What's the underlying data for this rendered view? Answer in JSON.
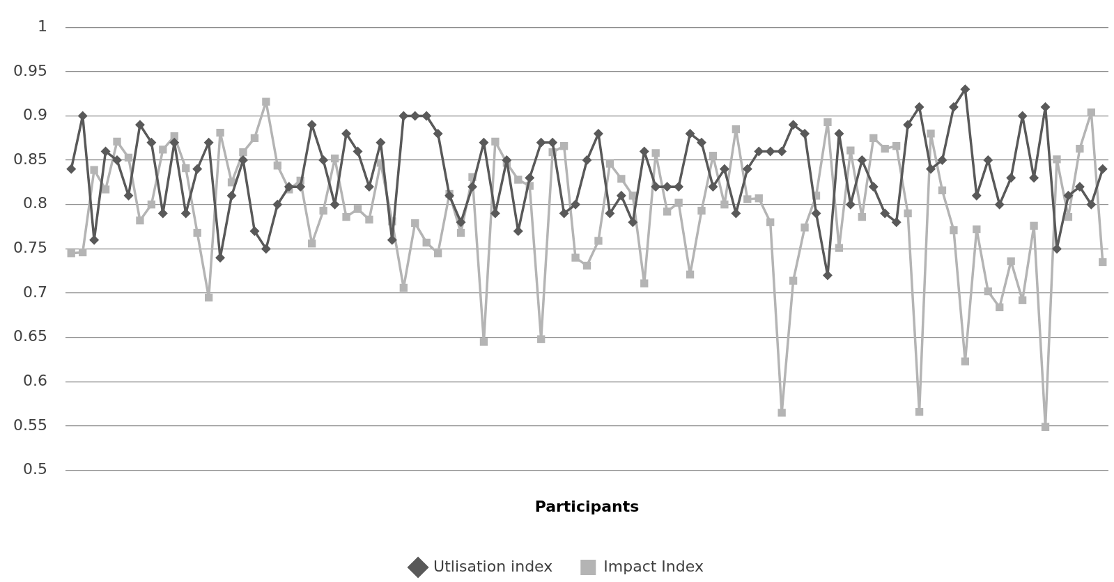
{
  "chart_data": {
    "type": "line",
    "xlabel": "Participants",
    "categories": [
      null,
      null,
      null,
      null,
      null,
      null,
      null,
      null,
      null,
      null,
      null,
      null,
      null,
      null,
      null,
      null,
      null,
      null,
      null,
      null,
      null,
      null,
      null,
      null,
      null,
      null,
      null,
      null,
      null,
      null,
      null,
      null,
      null,
      null,
      null,
      null,
      null,
      null,
      null,
      null,
      null,
      null,
      null,
      null,
      null,
      null,
      null,
      null,
      null,
      null,
      null,
      null,
      null,
      null,
      null,
      null,
      null,
      null,
      null,
      null,
      null,
      null,
      null,
      null,
      null,
      null,
      null,
      null,
      null,
      null,
      null,
      null,
      null,
      null,
      null,
      null,
      null,
      null,
      null,
      null,
      null,
      null,
      null,
      null,
      null,
      null,
      null,
      null,
      null,
      null,
      null
    ],
    "series": [
      {
        "name": "Utlisation index",
        "color": "#595959",
        "marker": "diamond",
        "values": [
          0.84,
          0.9,
          0.76,
          0.86,
          0.85,
          0.81,
          0.89,
          0.87,
          0.79,
          0.87,
          0.79,
          0.84,
          0.87,
          0.74,
          0.81,
          0.85,
          0.77,
          0.75,
          0.8,
          0.82,
          0.82,
          0.89,
          0.85,
          0.8,
          0.88,
          0.86,
          0.82,
          0.87,
          0.76,
          0.9,
          0.9,
          0.9,
          0.88,
          0.81,
          0.78,
          0.82,
          0.87,
          0.79,
          0.85,
          0.77,
          0.83,
          0.87,
          0.87,
          0.79,
          0.8,
          0.85,
          0.88,
          0.79,
          0.81,
          0.78,
          0.86,
          0.82,
          0.82,
          0.82,
          0.88,
          0.87,
          0.82,
          0.84,
          0.79,
          0.84,
          0.86,
          0.86,
          0.86,
          0.89,
          0.88,
          0.79,
          0.72,
          0.88,
          0.8,
          0.85,
          0.82,
          0.79,
          0.78,
          0.89,
          0.91,
          0.84,
          0.85,
          0.91,
          0.93,
          0.81,
          0.85,
          0.8,
          0.83,
          0.9,
          0.83,
          0.91,
          0.75,
          0.81,
          0.82,
          0.8,
          0.84
        ]
      },
      {
        "name": "Impact Index",
        "color": "#b4b4b4",
        "marker": "square",
        "values": [
          0.745,
          0.746,
          0.839,
          0.817,
          0.871,
          0.853,
          0.782,
          0.8,
          0.862,
          0.877,
          0.841,
          0.768,
          0.695,
          0.881,
          0.825,
          0.859,
          0.875,
          0.916,
          0.844,
          0.817,
          0.827,
          0.756,
          0.793,
          0.852,
          0.786,
          0.795,
          0.783,
          0.847,
          0.781,
          0.706,
          0.779,
          0.757,
          0.745,
          0.812,
          0.768,
          0.831,
          0.645,
          0.871,
          0.847,
          0.828,
          0.821,
          0.648,
          0.859,
          0.866,
          0.74,
          0.731,
          0.759,
          0.846,
          0.829,
          0.81,
          0.711,
          0.858,
          0.792,
          0.802,
          0.721,
          0.793,
          0.855,
          0.8,
          0.885,
          0.806,
          0.807,
          0.78,
          0.565,
          0.714,
          0.774,
          0.81,
          0.893,
          0.751,
          0.861,
          0.786,
          0.875,
          0.863,
          0.866,
          0.79,
          0.566,
          0.88,
          0.816,
          0.771,
          0.623,
          0.772,
          0.702,
          0.684,
          0.736,
          0.692,
          0.776,
          0.549,
          0.851,
          0.786,
          0.863,
          0.904,
          0.735
        ]
      }
    ],
    "ylim": [
      0.5,
      1
    ],
    "yticks": [
      0.5,
      0.55,
      0.6,
      0.65,
      0.7,
      0.75,
      0.8,
      0.85,
      0.9,
      0.95,
      1
    ],
    "grid": "y",
    "legend": "bottom",
    "line_style": "solid"
  }
}
